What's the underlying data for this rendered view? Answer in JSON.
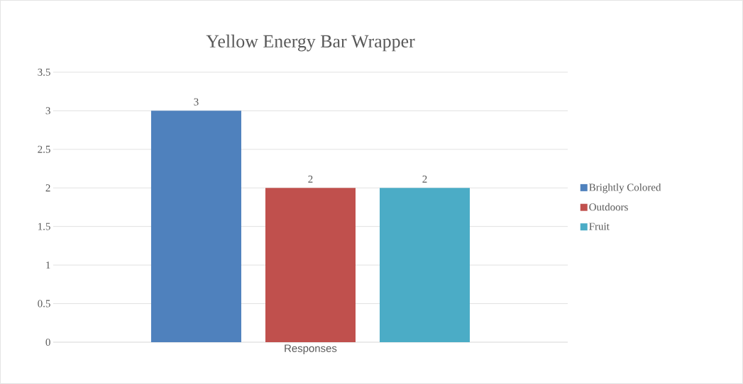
{
  "chart_data": {
    "type": "bar",
    "title": "Yellow Energy Bar Wrapper",
    "categories": [
      "Responses"
    ],
    "series": [
      {
        "name": "Brightly Colored",
        "color": "#4f81bd",
        "values": [
          3
        ]
      },
      {
        "name": "Outdoors",
        "color": "#c0504d",
        "values": [
          2
        ]
      },
      {
        "name": "Fruit",
        "color": "#4bacc6",
        "values": [
          2
        ]
      }
    ],
    "ylim": [
      0,
      3.5
    ],
    "yticks": [
      0,
      0.5,
      1,
      1.5,
      2,
      2.5,
      3,
      3.5
    ],
    "grid": "y",
    "legend": "right",
    "data_labels": true
  }
}
